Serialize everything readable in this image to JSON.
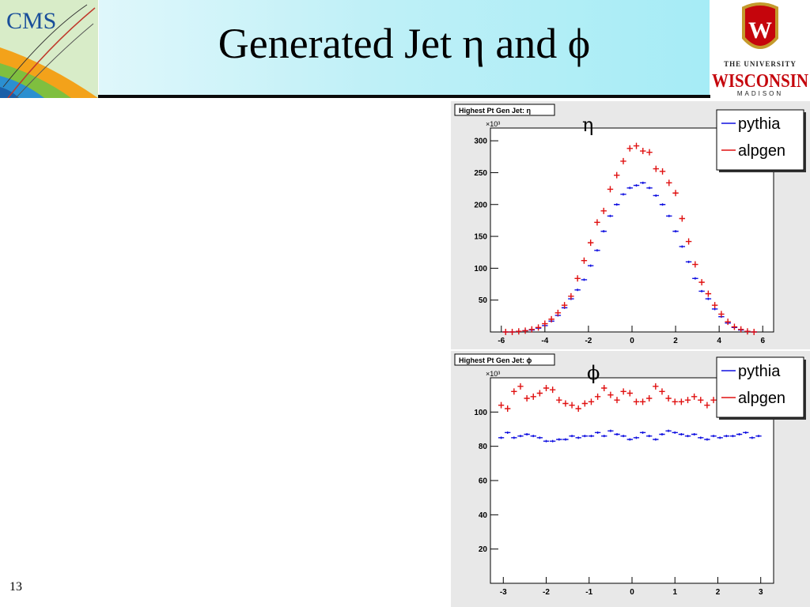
{
  "slide": {
    "title": "Generated Jet η and ϕ",
    "number": "13"
  },
  "logos": {
    "left_text": "CMS",
    "right_line1": "THE UNIVERSITY",
    "right_line2": "WISCONSIN",
    "right_line3": "MADISON",
    "right_letter": "W"
  },
  "colors": {
    "pythia": "#1010e0",
    "alpgen": "#e01010",
    "header_band": "#a6ecf6",
    "plot_frame_bg": "#e8e8e8"
  },
  "chart_data": [
    {
      "type": "scatter",
      "title": "Highest Pt Gen Jet: η",
      "symbol": "η",
      "multiplier": "×10³",
      "xlim": [
        -6.5,
        6.5
      ],
      "ylim": [
        0,
        320
      ],
      "xticks": [
        -6,
        -4,
        -2,
        0,
        2,
        4,
        6
      ],
      "yticks": [
        50,
        100,
        150,
        200,
        250,
        300
      ],
      "grid": false,
      "legend_position": "top-right",
      "x": [
        -5.8,
        -5.5,
        -5.2,
        -4.9,
        -4.6,
        -4.3,
        -4.0,
        -3.7,
        -3.4,
        -3.1,
        -2.8,
        -2.5,
        -2.2,
        -1.9,
        -1.6,
        -1.3,
        -1.0,
        -0.7,
        -0.4,
        -0.1,
        0.2,
        0.5,
        0.8,
        1.1,
        1.4,
        1.7,
        2.0,
        2.3,
        2.6,
        2.9,
        3.2,
        3.5,
        3.8,
        4.1,
        4.4,
        4.7,
        5.0,
        5.3,
        5.6
      ],
      "series": [
        {
          "name": "pythia",
          "values": [
            0,
            0,
            1,
            2,
            3,
            6,
            10,
            17,
            26,
            38,
            52,
            66,
            82,
            104,
            128,
            158,
            182,
            200,
            216,
            226,
            230,
            234,
            226,
            214,
            200,
            182,
            158,
            134,
            110,
            84,
            64,
            52,
            36,
            24,
            14,
            7,
            3,
            1,
            0
          ]
        },
        {
          "name": "alpgen",
          "values": [
            0,
            0,
            1,
            2,
            4,
            7,
            13,
            20,
            30,
            42,
            56,
            84,
            112,
            140,
            172,
            190,
            224,
            246,
            268,
            288,
            292,
            284,
            282,
            256,
            252,
            234,
            218,
            178,
            142,
            106,
            78,
            60,
            42,
            28,
            16,
            8,
            4,
            1,
            0
          ]
        }
      ]
    },
    {
      "type": "scatter",
      "title": "Highest Pt Gen Jet: ϕ",
      "symbol": "ϕ",
      "multiplier": "×10³",
      "xlim": [
        -3.3,
        3.3
      ],
      "ylim": [
        0,
        120
      ],
      "xticks": [
        -3,
        -2,
        -1,
        0,
        1,
        2,
        3
      ],
      "yticks": [
        20,
        40,
        60,
        80,
        100
      ],
      "grid": false,
      "legend_position": "top-right",
      "x": [
        -3.05,
        -2.9,
        -2.75,
        -2.6,
        -2.45,
        -2.3,
        -2.15,
        -2.0,
        -1.85,
        -1.7,
        -1.55,
        -1.4,
        -1.25,
        -1.1,
        -0.95,
        -0.8,
        -0.65,
        -0.5,
        -0.35,
        -0.2,
        -0.05,
        0.1,
        0.25,
        0.4,
        0.55,
        0.7,
        0.85,
        1.0,
        1.15,
        1.3,
        1.45,
        1.6,
        1.75,
        1.9,
        2.05,
        2.2,
        2.35,
        2.5,
        2.65,
        2.8,
        2.95
      ],
      "series": [
        {
          "name": "pythia",
          "values": [
            85,
            88,
            85,
            86,
            87,
            86,
            85,
            83,
            83,
            84,
            84,
            86,
            85,
            86,
            86,
            88,
            86,
            89,
            87,
            86,
            84,
            85,
            88,
            86,
            84,
            87,
            89,
            88,
            87,
            86,
            87,
            85,
            84,
            86,
            85,
            86,
            86,
            87,
            88,
            85,
            86
          ]
        },
        {
          "name": "alpgen",
          "values": [
            104,
            102,
            112,
            115,
            108,
            109,
            111,
            114,
            113,
            107,
            105,
            104,
            102,
            105,
            106,
            109,
            114,
            110,
            107,
            112,
            111,
            106,
            106,
            108,
            115,
            112,
            108,
            106,
            106,
            107,
            109,
            107,
            104,
            107,
            106,
            104,
            103,
            104,
            102,
            101,
            102
          ]
        }
      ]
    }
  ]
}
